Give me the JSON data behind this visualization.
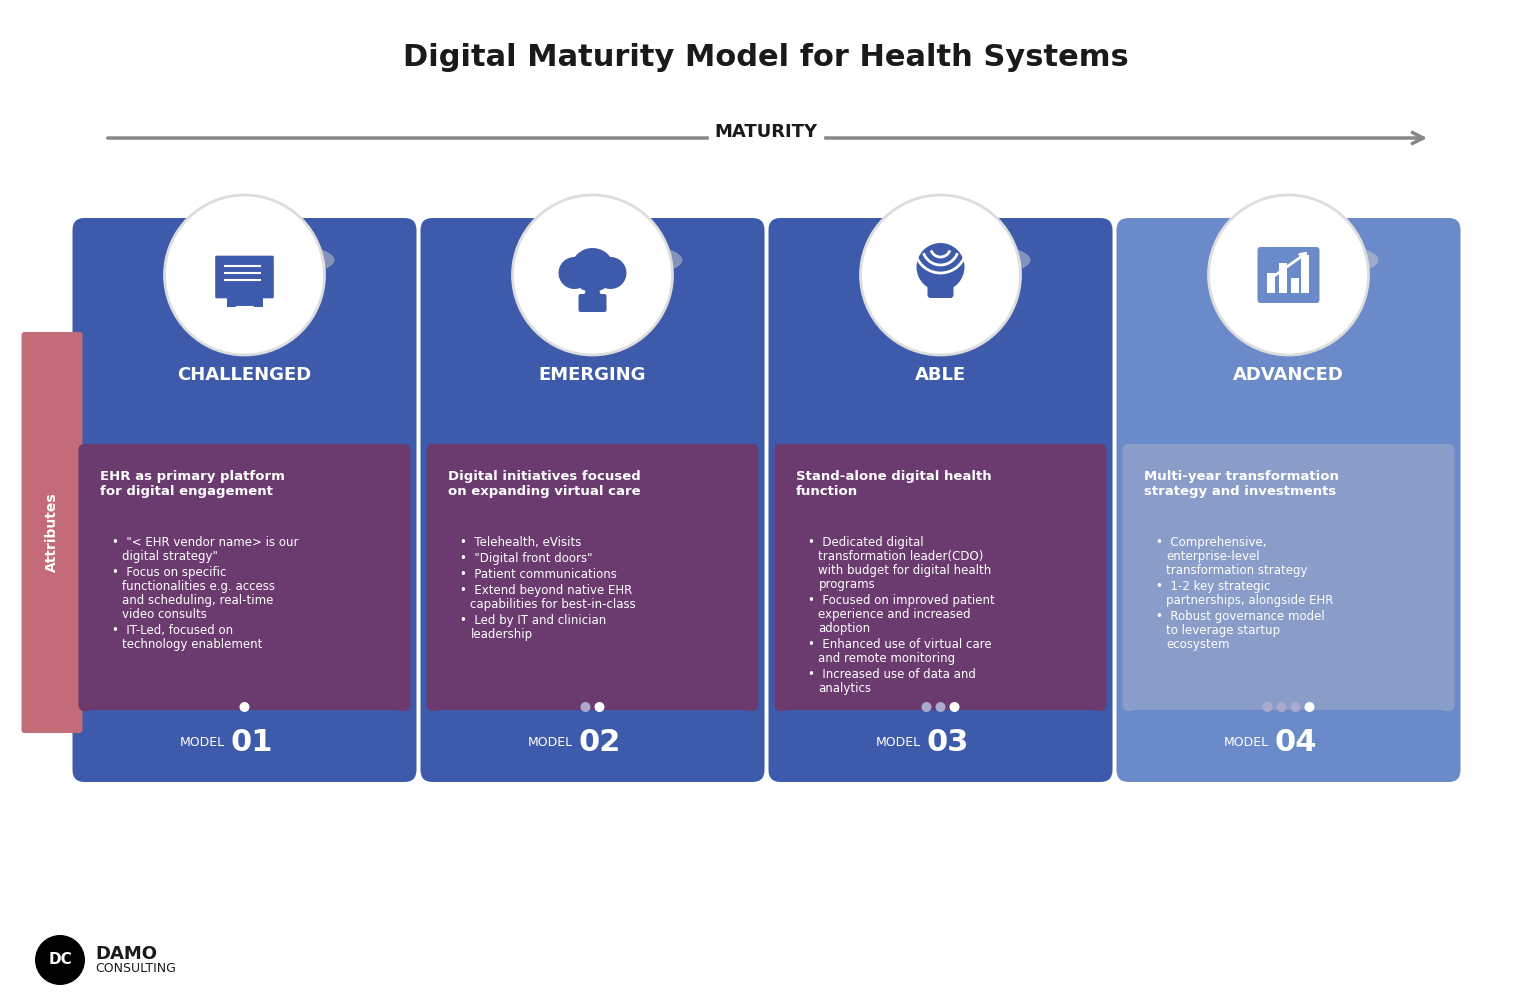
{
  "title": "Digital Maturity Model for Health Systems",
  "maturity_label": "MATURITY",
  "background_color": "#ffffff",
  "title_fontsize": 22,
  "cards": [
    {
      "label": "CHALLENGED",
      "model_num": "01",
      "header_color": "#3d5aab",
      "body_color": "#6b3a6e",
      "footer_color": "#3d5aab",
      "circle_color": "#ffffff",
      "icon_color": "#3d5aab",
      "dots": 1,
      "heading": "EHR as primary platform\nfor digital engagement",
      "bullets": [
        "\"< EHR vendor name> is our\ndigital strategy\"",
        "Focus on specific\nfunctionalities e.g. access\nand scheduling, real-time\nvideo consults",
        "IT-Led, focused on\ntechnology enablement"
      ]
    },
    {
      "label": "EMERGING",
      "model_num": "02",
      "header_color": "#3d5aab",
      "body_color": "#6b3a6e",
      "footer_color": "#3d5aab",
      "circle_color": "#ffffff",
      "icon_color": "#3d5aab",
      "dots": 2,
      "heading": "Digital initiatives focused\non expanding virtual care",
      "bullets": [
        "Telehealth, eVisits",
        "\"Digital front doors\"",
        "Patient communications",
        "Extend beyond native EHR\ncapabilities for best-in-class",
        "Led by IT and clinician\nleadership"
      ]
    },
    {
      "label": "ABLE",
      "model_num": "03",
      "header_color": "#3d5aab",
      "body_color": "#6b3a6e",
      "footer_color": "#3d5aab",
      "circle_color": "#ffffff",
      "icon_color": "#3d5aab",
      "dots": 3,
      "heading": "Stand-alone digital health\nfunction",
      "bullets": [
        "Dedicated digital\ntransformation leader(CDO)\nwith budget for digital health\nprograms",
        "Focused on improved patient\nexperience and increased\nadoption",
        "Enhanced use of virtual care\nand remote monitoring",
        "Increased use of data and\nanalytics"
      ]
    },
    {
      "label": "ADVANCED",
      "model_num": "04",
      "header_color": "#6b8ac9",
      "body_color": "#8a9dc9",
      "footer_color": "#6b8ac9",
      "circle_color": "#ffffff",
      "icon_color": "#6b8ac9",
      "dots": 4,
      "heading": "Multi-year transformation\nstrategy and investments",
      "bullets": [
        "Comprehensive,\nenterprise-level\ntransformation strategy",
        "1-2 key strategic\npartnerships, alongside EHR",
        "Robust governance model\nto leverage startup\necosystem"
      ]
    }
  ],
  "attributes_label": "Attributes",
  "attributes_bg": "#c46b7a",
  "arrow_color": "#888888"
}
